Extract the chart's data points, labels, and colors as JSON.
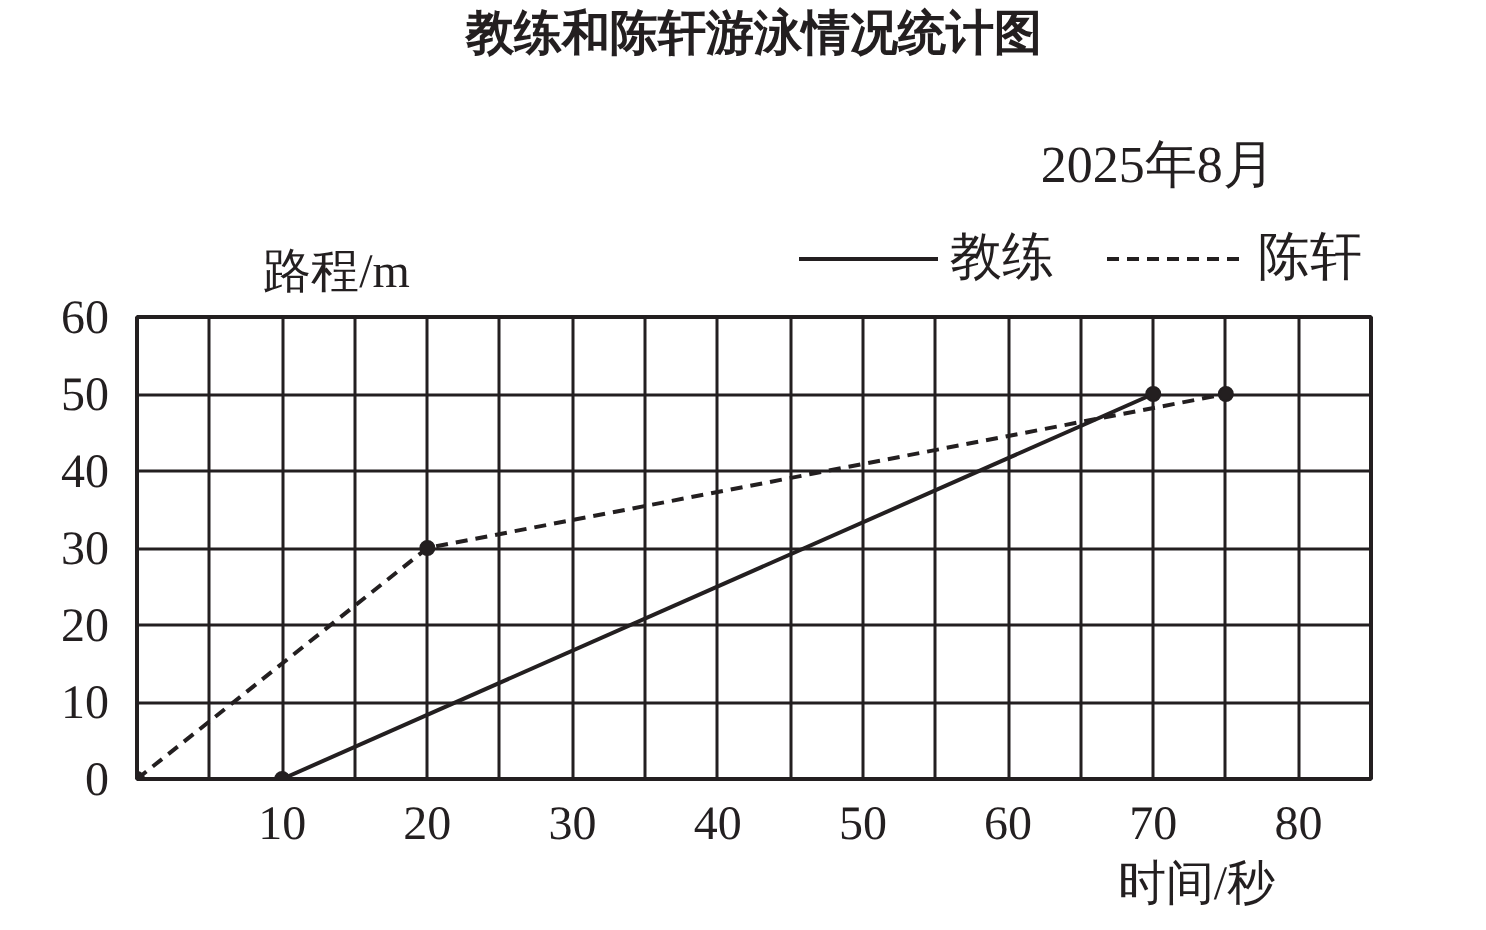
{
  "chart_data": {
    "type": "line",
    "title": "教练和陈轩游泳情况统计图",
    "subtitle": "2025年8月",
    "xlabel": "时间/秒",
    "ylabel": "路程/m",
    "series": [
      {
        "name": "教练",
        "color": "#231f20",
        "line_style": "solid",
        "x": [
          10,
          70
        ],
        "values": [
          0,
          50
        ]
      },
      {
        "name": "陈轩",
        "color": "#231f20",
        "line_style": "dashed",
        "x": [
          0,
          20,
          75
        ],
        "values": [
          0,
          30,
          50
        ]
      }
    ],
    "xlim": [
      0,
      85
    ],
    "ylim": [
      0,
      60
    ],
    "xticks": [
      {
        "value": 5,
        "label": null
      },
      10,
      {
        "value": 15,
        "label": null
      },
      20,
      {
        "value": 25,
        "label": null
      },
      30,
      {
        "value": 35,
        "label": null
      },
      40,
      {
        "value": 45,
        "label": null
      },
      50,
      {
        "value": 55,
        "label": null
      },
      60,
      {
        "value": 65,
        "label": null
      },
      70,
      {
        "value": 75,
        "label": null
      },
      80,
      {
        "value": 85,
        "label": null
      }
    ],
    "yticks": [
      0,
      10,
      20,
      30,
      40,
      50,
      60
    ],
    "grid": true,
    "legend": "top right",
    "marker": "circle"
  }
}
